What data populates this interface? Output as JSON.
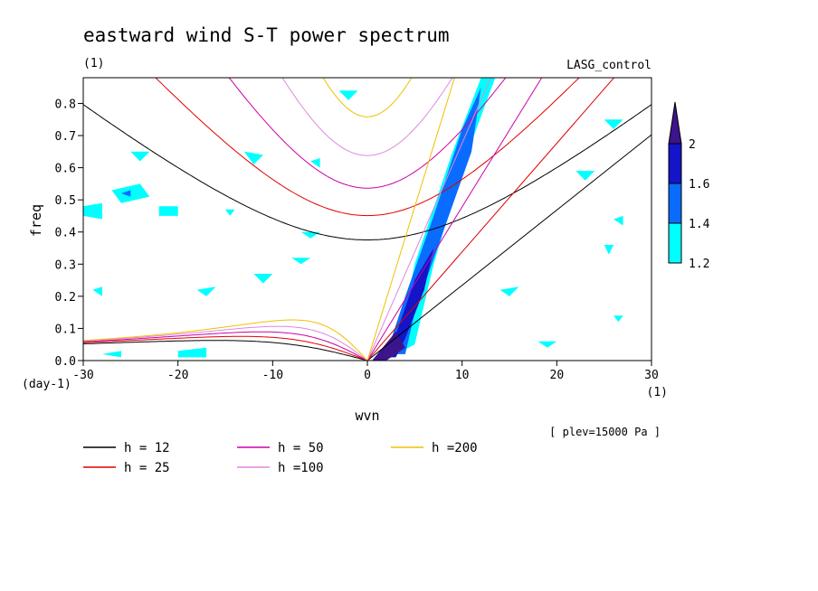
{
  "chart_data": {
    "type": "contour",
    "title": "eastward wind S-T power spectrum",
    "subtitle_left": "(1)",
    "subtitle_right": "LASG_control",
    "xlabel": "wvn",
    "ylabel": "freq",
    "x_unit": "(1)",
    "y_unit": "(day-1)",
    "note": "[ plev=15000 Pa ]",
    "xlim": [
      -30,
      30
    ],
    "ylim": [
      0,
      0.88
    ],
    "xticks": [
      -30,
      -20,
      -10,
      0,
      10,
      20,
      30
    ],
    "yticks": [
      0.0,
      0.1,
      0.2,
      0.3,
      0.4,
      0.5,
      0.6,
      0.7,
      0.8
    ],
    "ytick_labels": [
      "0.0",
      "0.1",
      "0.2",
      "0.3",
      "0.4",
      "0.5",
      "0.6",
      "0.7",
      "0.8"
    ],
    "grid": false,
    "colorbar": {
      "levels": [
        1.2,
        1.4,
        1.6,
        2
      ],
      "labels": [
        "1.2",
        "1.4",
        "1.6",
        "2"
      ],
      "colors": [
        "#00ffff",
        "#0a6cff",
        "#1414c8",
        "#3c148c"
      ]
    },
    "series": [
      {
        "name": "h = 12",
        "h": 12,
        "color": "#000000",
        "linewidth": 1
      },
      {
        "name": "h = 25",
        "h": 25,
        "color": "#e00000",
        "linewidth": 1
      },
      {
        "name": "h = 50",
        "h": 50,
        "color": "#cc00aa",
        "linewidth": 1
      },
      {
        "name": "h =100",
        "h": 100,
        "color": "#dd88dd",
        "linewidth": 1
      },
      {
        "name": "h =200",
        "h": 200,
        "color": "#f0c000",
        "linewidth": 1
      }
    ],
    "legend_order": [
      0,
      2,
      4,
      1,
      3
    ],
    "filled_regions": [
      {
        "level": 0,
        "points": [
          [
            3,
            0.02
          ],
          [
            5,
            0.3
          ],
          [
            9,
            0.65
          ],
          [
            12,
            0.88
          ],
          [
            13.5,
            0.88
          ],
          [
            10,
            0.6
          ],
          [
            7,
            0.3
          ],
          [
            5,
            0.05
          ]
        ]
      },
      {
        "level": 1,
        "points": [
          [
            2,
            0.02
          ],
          [
            4,
            0.2
          ],
          [
            7,
            0.45
          ],
          [
            10,
            0.72
          ],
          [
            12,
            0.85
          ],
          [
            11,
            0.65
          ],
          [
            8,
            0.4
          ],
          [
            5,
            0.15
          ],
          [
            4,
            0.02
          ]
        ]
      },
      {
        "level": 2,
        "points": [
          [
            1,
            0.01
          ],
          [
            3,
            0.08
          ],
          [
            5,
            0.25
          ],
          [
            7,
            0.35
          ],
          [
            6,
            0.22
          ],
          [
            4,
            0.07
          ],
          [
            3,
            0.01
          ]
        ]
      },
      {
        "level": 3,
        "points": [
          [
            0.5,
            0.0
          ],
          [
            3,
            0.09
          ],
          [
            4,
            0.04
          ],
          [
            2,
            0.0
          ]
        ]
      },
      {
        "level": 0,
        "points": [
          [
            -27,
            0.53
          ],
          [
            -24,
            0.55
          ],
          [
            -23,
            0.51
          ],
          [
            -26,
            0.49
          ]
        ]
      },
      {
        "level": 1,
        "points": [
          [
            -26,
            0.52
          ],
          [
            -25,
            0.53
          ],
          [
            -25,
            0.51
          ]
        ]
      },
      {
        "level": 0,
        "points": [
          [
            -30,
            0.48
          ],
          [
            -28,
            0.49
          ],
          [
            -28,
            0.44
          ],
          [
            -30,
            0.45
          ]
        ]
      },
      {
        "level": 0,
        "points": [
          [
            -22,
            0.48
          ],
          [
            -20,
            0.48
          ],
          [
            -20,
            0.45
          ],
          [
            -22,
            0.45
          ]
        ]
      },
      {
        "level": 0,
        "points": [
          [
            -13,
            0.65
          ],
          [
            -11,
            0.64
          ],
          [
            -12,
            0.61
          ]
        ]
      },
      {
        "level": 0,
        "points": [
          [
            -25,
            0.65
          ],
          [
            -23,
            0.65
          ],
          [
            -24,
            0.62
          ]
        ]
      },
      {
        "level": 0,
        "points": [
          [
            -28,
            0.02
          ],
          [
            -26,
            0.03
          ],
          [
            -26,
            0.01
          ]
        ]
      },
      {
        "level": 0,
        "points": [
          [
            -20,
            0.03
          ],
          [
            -17,
            0.04
          ],
          [
            -17,
            0.01
          ],
          [
            -20,
            0.01
          ]
        ]
      },
      {
        "level": 0,
        "points": [
          [
            -12,
            0.27
          ],
          [
            -10,
            0.27
          ],
          [
            -11,
            0.24
          ]
        ]
      },
      {
        "level": 0,
        "points": [
          [
            -18,
            0.22
          ],
          [
            -16,
            0.23
          ],
          [
            -17,
            0.2
          ]
        ]
      },
      {
        "level": 0,
        "points": [
          [
            -3,
            0.84
          ],
          [
            -1,
            0.84
          ],
          [
            -2,
            0.81
          ]
        ]
      },
      {
        "level": 0,
        "points": [
          [
            -6,
            0.62
          ],
          [
            -5,
            0.63
          ],
          [
            -5,
            0.6
          ]
        ]
      },
      {
        "level": 0,
        "points": [
          [
            25,
            0.75
          ],
          [
            27,
            0.75
          ],
          [
            26,
            0.72
          ]
        ]
      },
      {
        "level": 0,
        "points": [
          [
            26,
            0.44
          ],
          [
            27,
            0.45
          ],
          [
            27,
            0.42
          ]
        ]
      },
      {
        "level": 0,
        "points": [
          [
            22,
            0.59
          ],
          [
            24,
            0.59
          ],
          [
            23,
            0.56
          ]
        ]
      },
      {
        "level": 0,
        "points": [
          [
            25,
            0.36
          ],
          [
            26,
            0.36
          ],
          [
            25.5,
            0.33
          ]
        ]
      },
      {
        "level": 0,
        "points": [
          [
            26,
            0.14
          ],
          [
            27,
            0.14
          ],
          [
            26.5,
            0.12
          ]
        ]
      },
      {
        "level": 0,
        "points": [
          [
            18,
            0.06
          ],
          [
            20,
            0.06
          ],
          [
            19,
            0.04
          ]
        ]
      },
      {
        "level": 0,
        "points": [
          [
            14,
            0.22
          ],
          [
            16,
            0.23
          ],
          [
            15,
            0.2
          ]
        ]
      },
      {
        "level": 0,
        "points": [
          [
            -8,
            0.32
          ],
          [
            -6,
            0.32
          ],
          [
            -7,
            0.3
          ]
        ]
      },
      {
        "level": 0,
        "points": [
          [
            -29,
            0.22
          ],
          [
            -28,
            0.23
          ],
          [
            -28,
            0.2
          ]
        ]
      },
      {
        "level": 0,
        "points": [
          [
            -15,
            0.47
          ],
          [
            -14,
            0.47
          ],
          [
            -14.5,
            0.45
          ]
        ]
      },
      {
        "level": 0,
        "points": [
          [
            -7,
            0.4
          ],
          [
            -5,
            0.4
          ],
          [
            -6,
            0.38
          ]
        ]
      }
    ]
  }
}
